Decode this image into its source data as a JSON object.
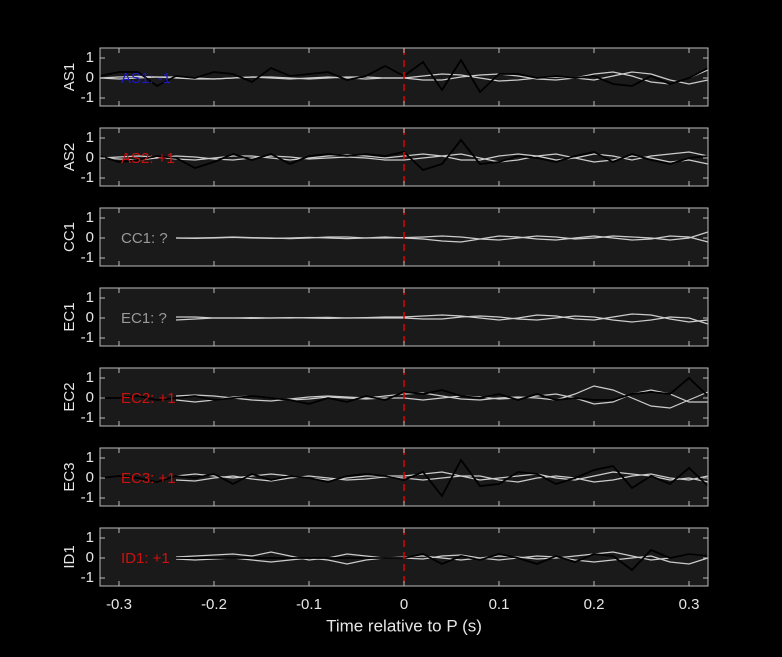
{
  "chart_data": {
    "type": "line",
    "xlabel": "Time relative to P (s)",
    "xlim": [
      -0.32,
      0.32
    ],
    "xticks": [
      -0.3,
      -0.2,
      -0.1,
      0,
      0.1,
      0.2,
      0.3
    ],
    "marker_x": 0,
    "marker_color": "#e00000",
    "x": [
      -0.32,
      -0.3,
      -0.28,
      -0.26,
      -0.24,
      -0.22,
      -0.2,
      -0.18,
      -0.16,
      -0.14,
      -0.12,
      -0.1,
      -0.08,
      -0.06,
      -0.04,
      -0.02,
      0,
      0.02,
      0.04,
      0.06,
      0.08,
      0.1,
      0.12,
      0.14,
      0.16,
      0.18,
      0.2,
      0.22,
      0.24,
      0.26,
      0.28,
      0.3,
      0.32
    ],
    "panels": [
      {
        "ylabel": "AS1",
        "annotation": "AS1: -1",
        "annotation_color": "#1a1ac8",
        "ylim": [
          -1.4,
          1.5
        ],
        "yticks": [
          -1,
          0,
          1
        ],
        "series": [
          {
            "color": "#cccccc",
            "values": [
              0,
              0.05,
              0.08,
              0.05,
              0,
              -0.05,
              -0.05,
              0,
              0.05,
              0.05,
              0,
              -0.05,
              0,
              0.05,
              0.05,
              0,
              0,
              0.1,
              0.2,
              0.15,
              0,
              -0.15,
              -0.1,
              0,
              0.05,
              0,
              -0.1,
              0.1,
              0.3,
              0.2,
              -0.1,
              -0.3,
              -0.1
            ]
          },
          {
            "color": "#cccccc",
            "values": [
              0,
              -0.05,
              0,
              0.05,
              0.05,
              0,
              -0.05,
              0,
              0.05,
              0,
              -0.05,
              0,
              0.05,
              0,
              -0.05,
              0,
              0,
              -0.1,
              -0.1,
              0.05,
              0.15,
              0.2,
              0.1,
              -0.05,
              -0.1,
              0,
              0.2,
              0.3,
              0.1,
              -0.2,
              -0.3,
              0,
              0.4
            ]
          },
          {
            "color": "#000000",
            "values": [
              0.1,
              0.3,
              0.3,
              -0.4,
              0.1,
              0,
              0.3,
              0.2,
              -0.2,
              0.5,
              0.1,
              0.2,
              0.3,
              -0.1,
              0.1,
              0.6,
              0.1,
              0.8,
              -0.6,
              0.9,
              -0.7,
              0.2,
              0.2,
              0,
              0.1,
              0,
              0.1,
              -0.3,
              -0.4,
              0.1,
              -0.3,
              0,
              0.5
            ]
          }
        ]
      },
      {
        "ylabel": "AS2",
        "annotation": "AS2: +1",
        "annotation_color": "#d01010",
        "ylim": [
          -1.4,
          1.5
        ],
        "yticks": [
          -1,
          0,
          1
        ],
        "series": [
          {
            "color": "#cccccc",
            "values": [
              0,
              0.05,
              0.1,
              0.05,
              -0.05,
              -0.1,
              0,
              0.1,
              0.1,
              0,
              -0.1,
              0,
              0.1,
              0.15,
              0.1,
              0,
              0.1,
              0.2,
              0.1,
              -0.1,
              -0.1,
              0.1,
              0.2,
              0.1,
              -0.1,
              0,
              0.2,
              0.1,
              -0.1,
              0.1,
              0.2,
              0.3,
              0.1
            ]
          },
          {
            "color": "#cccccc",
            "values": [
              0,
              -0.05,
              -0.1,
              0,
              0.1,
              0.05,
              -0.05,
              -0.1,
              0,
              0.1,
              0.05,
              -0.05,
              0,
              0.05,
              0,
              -0.1,
              -0.1,
              0,
              0.1,
              0.2,
              0,
              -0.2,
              -0.1,
              0.1,
              0.2,
              0,
              -0.2,
              -0.1,
              0.1,
              0,
              -0.2,
              -0.1,
              -0.3
            ]
          },
          {
            "color": "#000000",
            "values": [
              0.1,
              -0.2,
              -0.1,
              0.1,
              0,
              -0.5,
              -0.2,
              0.2,
              -0.1,
              0.2,
              -0.3,
              0.1,
              0.2,
              0.1,
              0.2,
              0.1,
              0.3,
              -0.6,
              -0.3,
              0.9,
              -0.3,
              -0.2,
              0.1,
              0,
              -0.2,
              0.1,
              0.3,
              -0.2,
              0.2,
              -0.1,
              -0.3,
              0,
              0.1
            ]
          }
        ]
      },
      {
        "ylabel": "CC1",
        "annotation": "CC1: ?",
        "annotation_color": "#9a9a9a",
        "ylim": [
          -1.4,
          1.5
        ],
        "yticks": [
          -1,
          0,
          1
        ],
        "series": [
          {
            "color": "#cccccc",
            "values": [
              null,
              null,
              null,
              null,
              0,
              0,
              0.02,
              0.05,
              0.02,
              0,
              -0.03,
              0,
              0.05,
              0.05,
              0,
              0,
              0.02,
              0.05,
              0.1,
              0.05,
              -0.05,
              -0.1,
              0,
              0.1,
              0.05,
              -0.05,
              0,
              0.1,
              0.05,
              0,
              -0.1,
              0,
              0.3
            ]
          },
          {
            "color": "#cccccc",
            "values": [
              null,
              null,
              null,
              null,
              0,
              -0.02,
              0,
              0.03,
              0,
              -0.02,
              0,
              0.03,
              0,
              -0.03,
              0,
              0.05,
              0,
              -0.05,
              -0.15,
              -0.2,
              -0.05,
              0.1,
              0.05,
              -0.05,
              -0.1,
              0,
              0.1,
              0,
              -0.1,
              -0.05,
              0.1,
              0.05,
              -0.2
            ]
          }
        ]
      },
      {
        "ylabel": "EC1",
        "annotation": "EC1: ?",
        "annotation_color": "#9a9a9a",
        "ylim": [
          -1.4,
          1.5
        ],
        "yticks": [
          -1,
          0,
          1
        ],
        "series": [
          {
            "color": "#cccccc",
            "values": [
              null,
              null,
              null,
              null,
              0.05,
              0.05,
              0,
              0,
              0.02,
              0,
              0,
              0.02,
              0.03,
              0,
              0.02,
              0.05,
              0.05,
              0.1,
              0.15,
              0.1,
              0,
              -0.1,
              0,
              0.15,
              0.1,
              -0.05,
              -0.1,
              0.05,
              0.2,
              0.15,
              -0.05,
              -0.2,
              -0.1
            ]
          },
          {
            "color": "#cccccc",
            "values": [
              null,
              null,
              null,
              null,
              -0.1,
              -0.05,
              0,
              0,
              -0.02,
              0,
              0.02,
              0,
              -0.02,
              0,
              0,
              0,
              0,
              -0.05,
              -0.05,
              0.05,
              0.1,
              0.05,
              -0.05,
              -0.1,
              0,
              0.1,
              0.05,
              -0.1,
              -0.2,
              -0.1,
              0.05,
              0,
              -0.3
            ]
          }
        ]
      },
      {
        "ylabel": "EC2",
        "annotation": "EC2: +1",
        "annotation_color": "#d01010",
        "ylim": [
          -1.4,
          1.5
        ],
        "yticks": [
          -1,
          0,
          1
        ],
        "series": [
          {
            "color": "#cccccc",
            "values": [
              null,
              null,
              null,
              null,
              0.1,
              0.15,
              0.1,
              0,
              -0.1,
              -0.15,
              -0.05,
              0.05,
              0.1,
              0.05,
              0,
              0.1,
              0.2,
              0.25,
              0.1,
              -0.05,
              -0.1,
              0,
              0.05,
              0,
              -0.1,
              0.2,
              0.6,
              0.4,
              0,
              -0.4,
              -0.5,
              -0.1,
              0.3
            ]
          },
          {
            "color": "#cccccc",
            "values": [
              null,
              null,
              null,
              null,
              -0.1,
              -0.2,
              -0.1,
              0.05,
              0.1,
              0,
              -0.1,
              -0.05,
              0.05,
              0,
              -0.05,
              0,
              0,
              -0.1,
              0,
              0.1,
              0.05,
              -0.05,
              0,
              0.1,
              0.2,
              0,
              -0.3,
              -0.2,
              0.2,
              0.4,
              0.2,
              -0.2,
              -0.2
            ]
          },
          {
            "color": "#000000",
            "values": [
              0,
              0,
              0.1,
              -0.1,
              0,
              0.1,
              -0.1,
              0,
              0.1,
              0,
              -0.1,
              -0.3,
              0,
              -0.2,
              0.1,
              -0.1,
              0.3,
              0.2,
              0.4,
              0.1,
              0,
              0.2,
              -0.1,
              0.2,
              -0.1,
              0,
              -0.1,
              -0.1,
              0.2,
              0.3,
              0.2,
              1.0,
              0.1
            ]
          }
        ]
      },
      {
        "ylabel": "EC3",
        "annotation": "EC3: +1",
        "annotation_color": "#d01010",
        "ylim": [
          -1.4,
          1.5
        ],
        "yticks": [
          -1,
          0,
          1
        ],
        "series": [
          {
            "color": "#cccccc",
            "values": [
              null,
              null,
              null,
              null,
              0.1,
              0.2,
              0.1,
              0,
              0.1,
              0.2,
              0.1,
              0,
              -0.1,
              0,
              0.1,
              0.1,
              0.1,
              0.2,
              0.3,
              0.1,
              -0.1,
              0,
              0.1,
              0.2,
              0,
              -0.1,
              0.1,
              0.3,
              0.2,
              0.1,
              -0.1,
              0,
              -0.2
            ]
          },
          {
            "color": "#cccccc",
            "values": [
              null,
              null,
              null,
              null,
              -0.1,
              -0.15,
              0,
              0.1,
              -0.05,
              -0.15,
              0,
              0.1,
              0,
              -0.1,
              -0.05,
              0.05,
              0,
              -0.1,
              0,
              0.1,
              0.1,
              -0.1,
              -0.2,
              0,
              0.1,
              0,
              -0.2,
              -0.1,
              0.1,
              0.2,
              0,
              -0.1,
              0.1
            ]
          },
          {
            "color": "#000000",
            "values": [
              0,
              0.1,
              0,
              -0.2,
              0.1,
              0,
              0.2,
              -0.3,
              0.2,
              -0.1,
              0.1,
              0,
              -0.2,
              0.1,
              0.2,
              0.1,
              -0.1,
              0.3,
              -0.9,
              0.9,
              -0.4,
              -0.3,
              0.3,
              0.2,
              -0.3,
              0,
              0.4,
              0.6,
              -0.5,
              0.1,
              -0.3,
              0.5,
              -0.4
            ]
          }
        ]
      },
      {
        "ylabel": "ID1",
        "annotation": "ID1: +1",
        "annotation_color": "#d01010",
        "ylim": [
          -1.4,
          1.5
        ],
        "yticks": [
          -1,
          0,
          1
        ],
        "series": [
          {
            "color": "#cccccc",
            "values": [
              null,
              null,
              null,
              null,
              0.05,
              0.1,
              0.15,
              0.2,
              0.1,
              0.3,
              0.1,
              -0.1,
              0,
              0.2,
              0.1,
              0,
              0.05,
              0.1,
              0,
              -0.1,
              0,
              0.1,
              0.05,
              -0.05,
              0,
              0.1,
              0.2,
              0.3,
              0.1,
              -0.1,
              0,
              0.2,
              0.1
            ]
          },
          {
            "color": "#cccccc",
            "values": [
              null,
              null,
              null,
              null,
              -0.05,
              -0.1,
              -0.05,
              0,
              -0.1,
              -0.2,
              -0.1,
              0,
              -0.1,
              -0.3,
              -0.1,
              0,
              0,
              -0.05,
              0.1,
              0.15,
              0,
              -0.1,
              0,
              0.1,
              0.05,
              -0.1,
              -0.2,
              -0.1,
              0,
              0.1,
              -0.2,
              -0.3,
              0
            ]
          },
          {
            "color": "#000000",
            "values": [
              null,
              null,
              null,
              null,
              0,
              0,
              0,
              0,
              0,
              0,
              0,
              0,
              0,
              0,
              0,
              0,
              0,
              0.2,
              -0.3,
              0.1,
              -0.1,
              0.2,
              0,
              -0.3,
              0.1,
              -0.2,
              0.2,
              0.1,
              -0.6,
              0.4,
              0,
              0.2,
              0.1
            ]
          }
        ]
      }
    ]
  }
}
